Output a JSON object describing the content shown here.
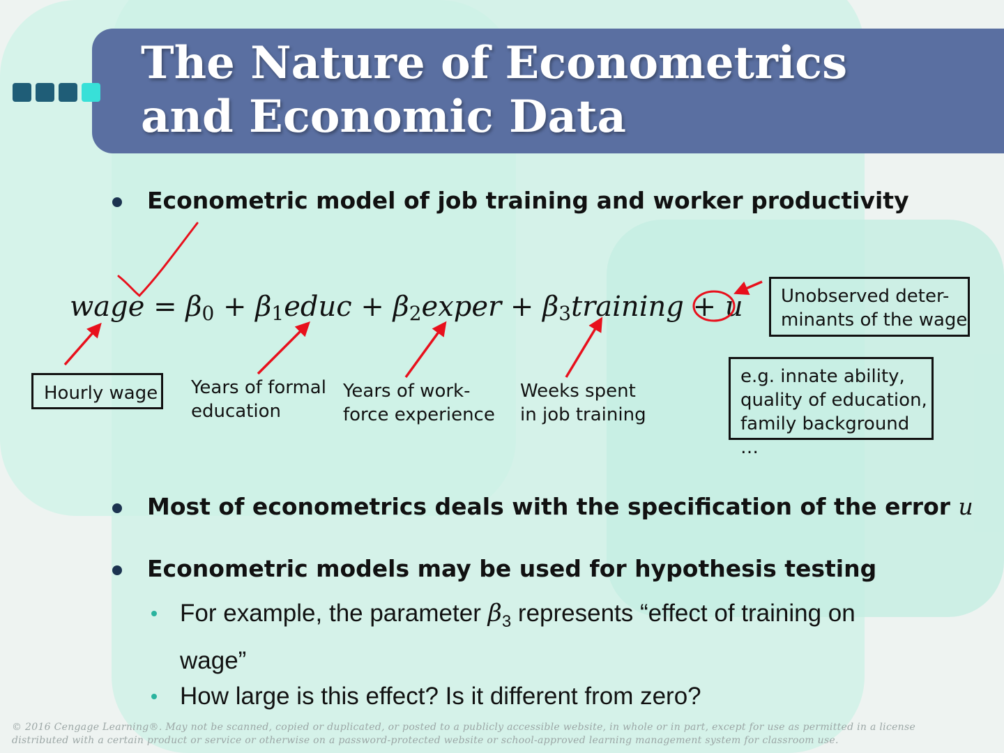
{
  "slide": {
    "title": "The Nature of Econometrics\nand Economic Data",
    "bullets": {
      "b1": "Econometric model of job training and worker productivity",
      "b2_text": "Most of econometrics deals with the specification of the error ",
      "b2_math": "u",
      "b3": "Econometric models may be used for hypothesis testing"
    },
    "equation": {
      "lhs": "wage",
      "eq": "=",
      "beta": "β",
      "plus": "+",
      "sub0": "0",
      "sub1": "1",
      "sub2": "2",
      "sub3": "3",
      "term1": "educ",
      "term2": "exper",
      "term3": "training",
      "error": "u"
    },
    "labels": {
      "hourly_wage": "Hourly wage",
      "educ": "Years of formal\neducation",
      "exper": "Years of work-\nforce experience",
      "training": "Weeks spent\nin job training",
      "unobserved": "Unobserved deter-\nminants of the wage",
      "examples": "e.g. innate ability,\nquality of education,\nfamily background …"
    },
    "sub_bullets": {
      "s1_pre": "For example, the parameter ",
      "s1_beta": "β",
      "s1_sub": "3",
      "s1_post": " represents “effect of training on wage”",
      "s2": "How large is this effect? Is it different from zero?"
    },
    "copyright": "© 2016 Cengage Learning®. May not be scanned, copied or duplicated, or posted to a publicly accessible website, in whole or in part, except for use as permitted in a license distributed with a certain product or service or otherwise on a password-protected website or school-approved learning management system for classroom use."
  },
  "colors": {
    "title_bar": "#5a6fa1",
    "annotation_red": "#e8101c",
    "bullet": "#1c3350",
    "sub_bullet": "#2ab39e"
  }
}
